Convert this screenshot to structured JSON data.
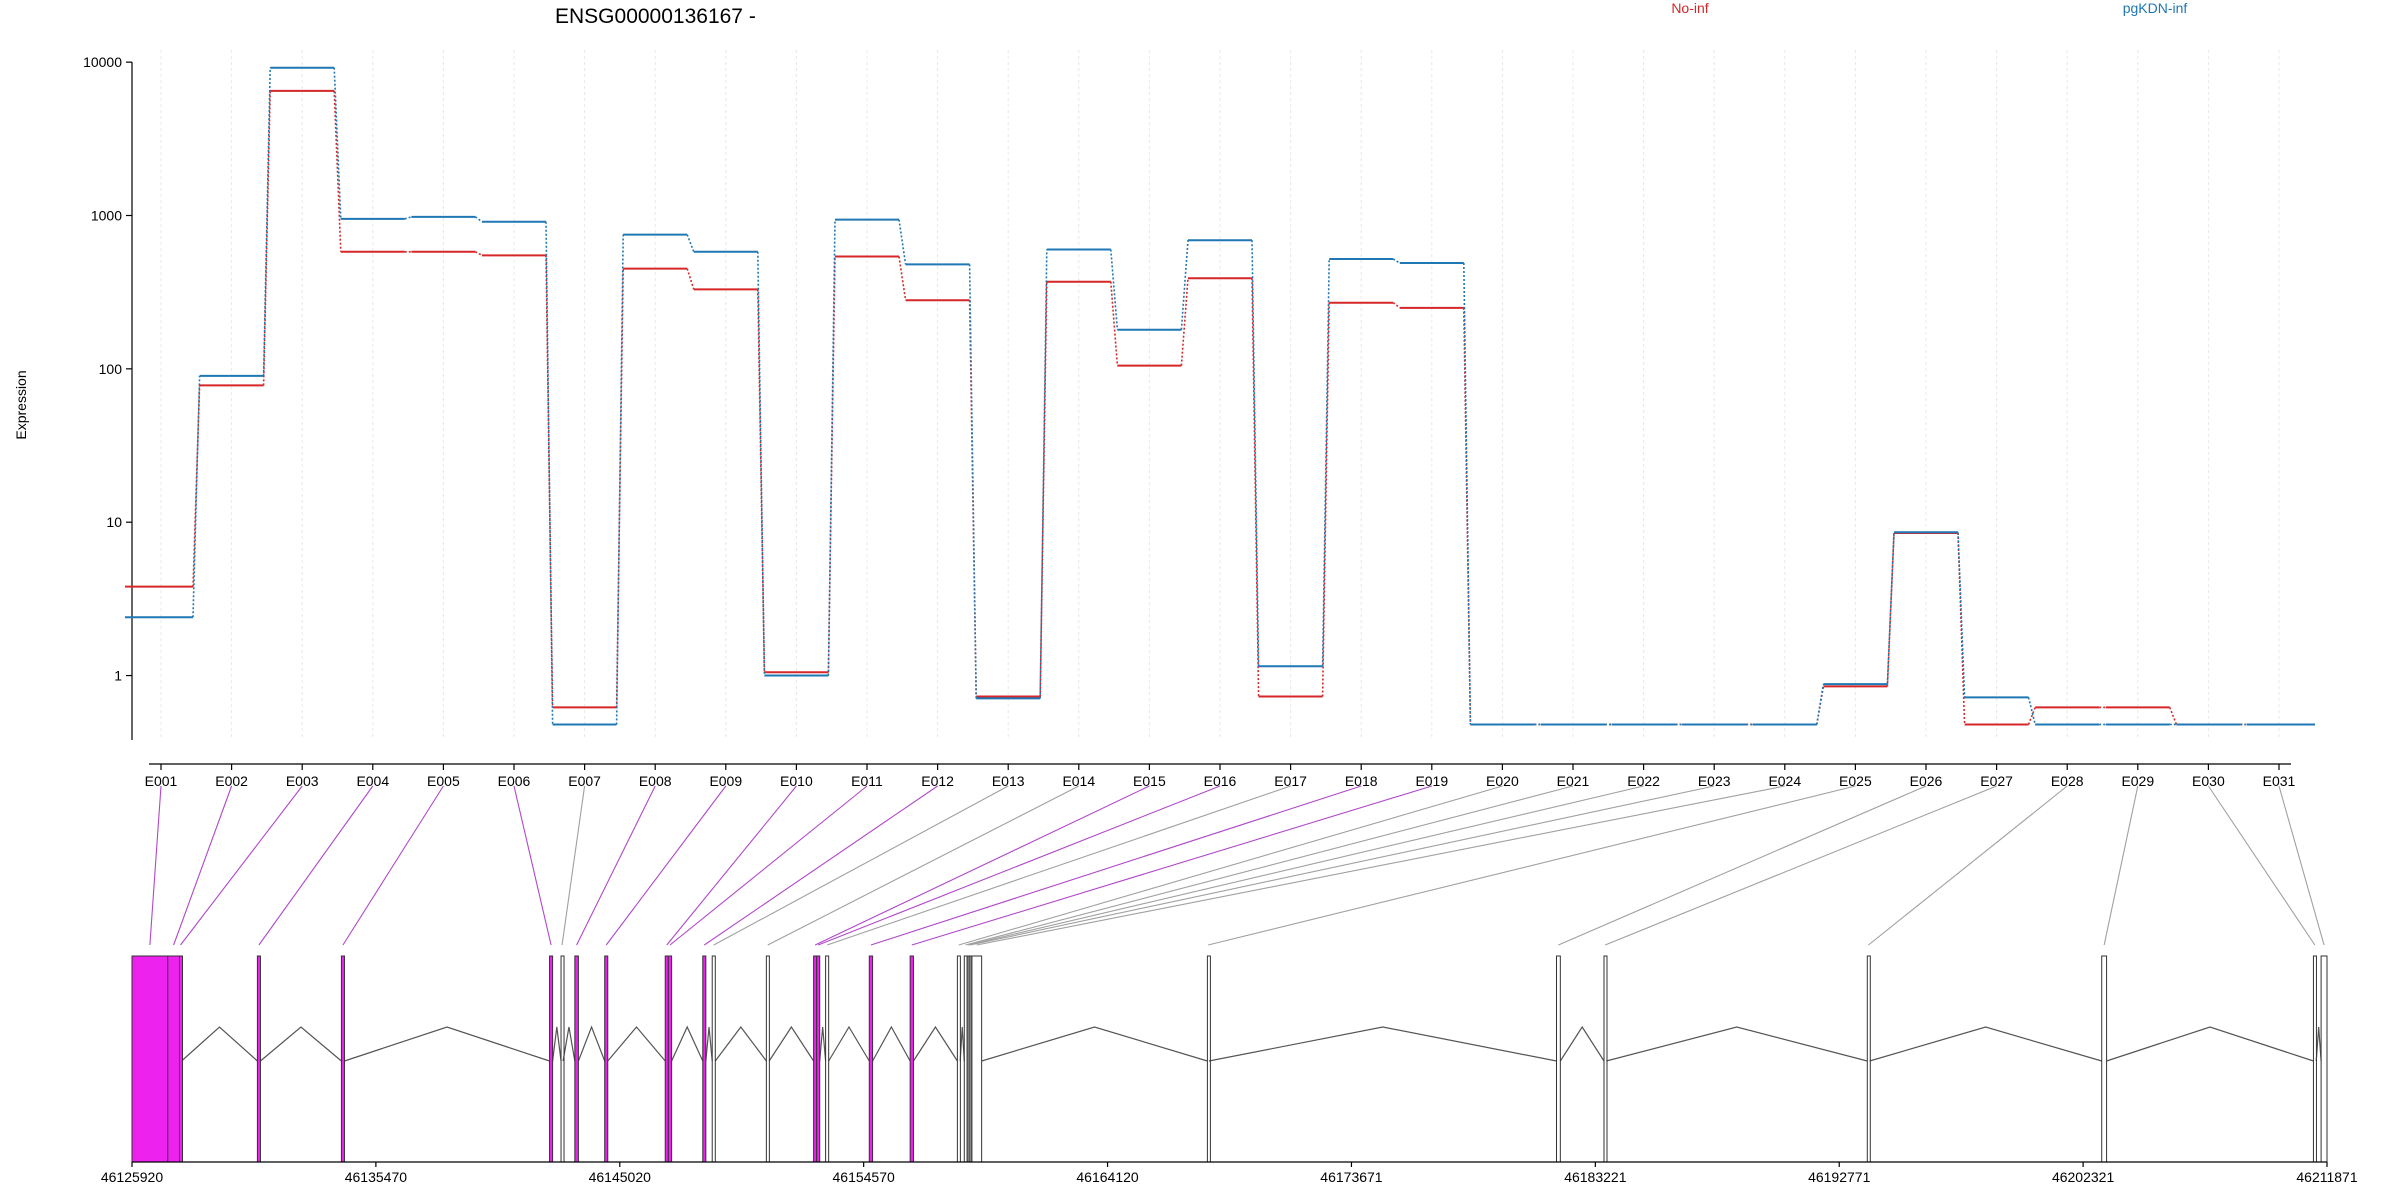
{
  "chart_data": {
    "type": "line",
    "title": "ENSG00000136167 -",
    "ylabel": "Expression",
    "yscale": "log",
    "ylim": [
      0.38,
      12000
    ],
    "yticks": [
      {
        "value": 10000,
        "label": "10000"
      },
      {
        "value": 1000,
        "label": "1000"
      },
      {
        "value": 100,
        "label": "100"
      },
      {
        "value": 10,
        "label": "10"
      },
      {
        "value": 1,
        "label": "1"
      }
    ],
    "categories": [
      "E001",
      "E002",
      "E003",
      "E004",
      "E005",
      "E006",
      "E007",
      "E008",
      "E009",
      "E010",
      "E011",
      "E012",
      "E013",
      "E014",
      "E015",
      "E016",
      "E017",
      "E018",
      "E019",
      "E020",
      "E021",
      "E022",
      "E023",
      "E024",
      "E025",
      "E026",
      "E027",
      "E028",
      "E029",
      "E030",
      "E031"
    ],
    "grid": "vertical",
    "legend_position": "top",
    "series": [
      {
        "name": "No-inf",
        "color": "#d62728",
        "values": [
          3.8,
          78,
          6500,
          580,
          580,
          550,
          0.62,
          450,
          330,
          1.05,
          540,
          280,
          0.73,
          370,
          105,
          390,
          0.73,
          270,
          250,
          0.48,
          0.48,
          0.48,
          0.48,
          0.48,
          0.85,
          8.5,
          0.48,
          0.62,
          0.62,
          0.48,
          0.48
        ]
      },
      {
        "name": "pgKDN-inf",
        "color": "#1f77b4",
        "values": [
          2.4,
          90,
          9200,
          950,
          980,
          910,
          0.48,
          750,
          580,
          1.0,
          940,
          480,
          0.71,
          600,
          180,
          690,
          1.15,
          520,
          490,
          0.48,
          0.48,
          0.48,
          0.48,
          0.48,
          0.88,
          8.6,
          0.72,
          0.48,
          0.48,
          0.48,
          0.48
        ]
      }
    ],
    "gene_model": {
      "xlim": [
        46125920,
        46211871
      ],
      "xticks": [
        {
          "value": 46125920,
          "label": "46125920"
        },
        {
          "value": 46135470,
          "label": "46135470"
        },
        {
          "value": 46145020,
          "label": "46145020"
        },
        {
          "value": 46154570,
          "label": "46154570"
        },
        {
          "value": 46164120,
          "label": "46164120"
        },
        {
          "value": 46173671,
          "label": "46173671"
        },
        {
          "value": 46183221,
          "label": "46183221"
        },
        {
          "value": 46192771,
          "label": "46192771"
        },
        {
          "value": 46202321,
          "label": "46202321"
        },
        {
          "value": 46211871,
          "label": "46211871"
        }
      ],
      "highlight_color": "#ee22ee",
      "exons": [
        {
          "id": "E001",
          "start": 46125920,
          "end": 46127320,
          "highlight": true
        },
        {
          "id": "E002",
          "start": 46127320,
          "end": 46127780,
          "highlight": true
        },
        {
          "id": "E003",
          "start": 46127780,
          "end": 46127860,
          "highlight": true
        },
        {
          "id": "E004",
          "start": 46130830,
          "end": 46130950,
          "highlight": true
        },
        {
          "id": "E005",
          "start": 46134120,
          "end": 46134240,
          "highlight": true
        },
        {
          "id": "E006",
          "start": 46142270,
          "end": 46142390,
          "highlight": true
        },
        {
          "id": "E007",
          "start": 46142720,
          "end": 46142800,
          "highlight": false
        },
        {
          "id": "E008",
          "start": 46143260,
          "end": 46143400,
          "highlight": true
        },
        {
          "id": "E009",
          "start": 46144430,
          "end": 46144550,
          "highlight": true
        },
        {
          "id": "E010",
          "start": 46146800,
          "end": 46146920,
          "highlight": true
        },
        {
          "id": "E011",
          "start": 46146920,
          "end": 46147050,
          "highlight": true
        },
        {
          "id": "E012",
          "start": 46148270,
          "end": 46148390,
          "highlight": true
        },
        {
          "id": "E013",
          "start": 46148640,
          "end": 46148760,
          "highlight": false
        },
        {
          "id": "E014",
          "start": 46150760,
          "end": 46150870,
          "highlight": false
        },
        {
          "id": "E015",
          "start": 46152610,
          "end": 46152730,
          "highlight": true
        },
        {
          "id": "E016",
          "start": 46152730,
          "end": 46152850,
          "highlight": true
        },
        {
          "id": "E017",
          "start": 46153080,
          "end": 46153200,
          "highlight": false
        },
        {
          "id": "E018",
          "start": 46154790,
          "end": 46154920,
          "highlight": true
        },
        {
          "id": "E019",
          "start": 46156390,
          "end": 46156520,
          "highlight": true
        },
        {
          "id": "E020",
          "start": 46158240,
          "end": 46158350,
          "highlight": false
        },
        {
          "id": "E021",
          "start": 46158510,
          "end": 46158600,
          "highlight": false
        },
        {
          "id": "E022",
          "start": 46158620,
          "end": 46158690,
          "highlight": false
        },
        {
          "id": "E023",
          "start": 46158690,
          "end": 46158800,
          "highlight": false
        },
        {
          "id": "E024",
          "start": 46158800,
          "end": 46159190,
          "highlight": false
        },
        {
          "id": "E025",
          "start": 46168030,
          "end": 46168090,
          "highlight": false
        },
        {
          "id": "E026",
          "start": 46181700,
          "end": 46181850,
          "highlight": false
        },
        {
          "id": "E027",
          "start": 46183560,
          "end": 46183650,
          "highlight": false
        },
        {
          "id": "E028",
          "start": 46193870,
          "end": 46193960,
          "highlight": false
        },
        {
          "id": "E029",
          "start": 46203050,
          "end": 46203240,
          "highlight": false
        },
        {
          "id": "E030",
          "start": 46211340,
          "end": 46211450,
          "highlight": false
        },
        {
          "id": "E031",
          "start": 46211640,
          "end": 46211871,
          "highlight": false
        }
      ]
    }
  }
}
